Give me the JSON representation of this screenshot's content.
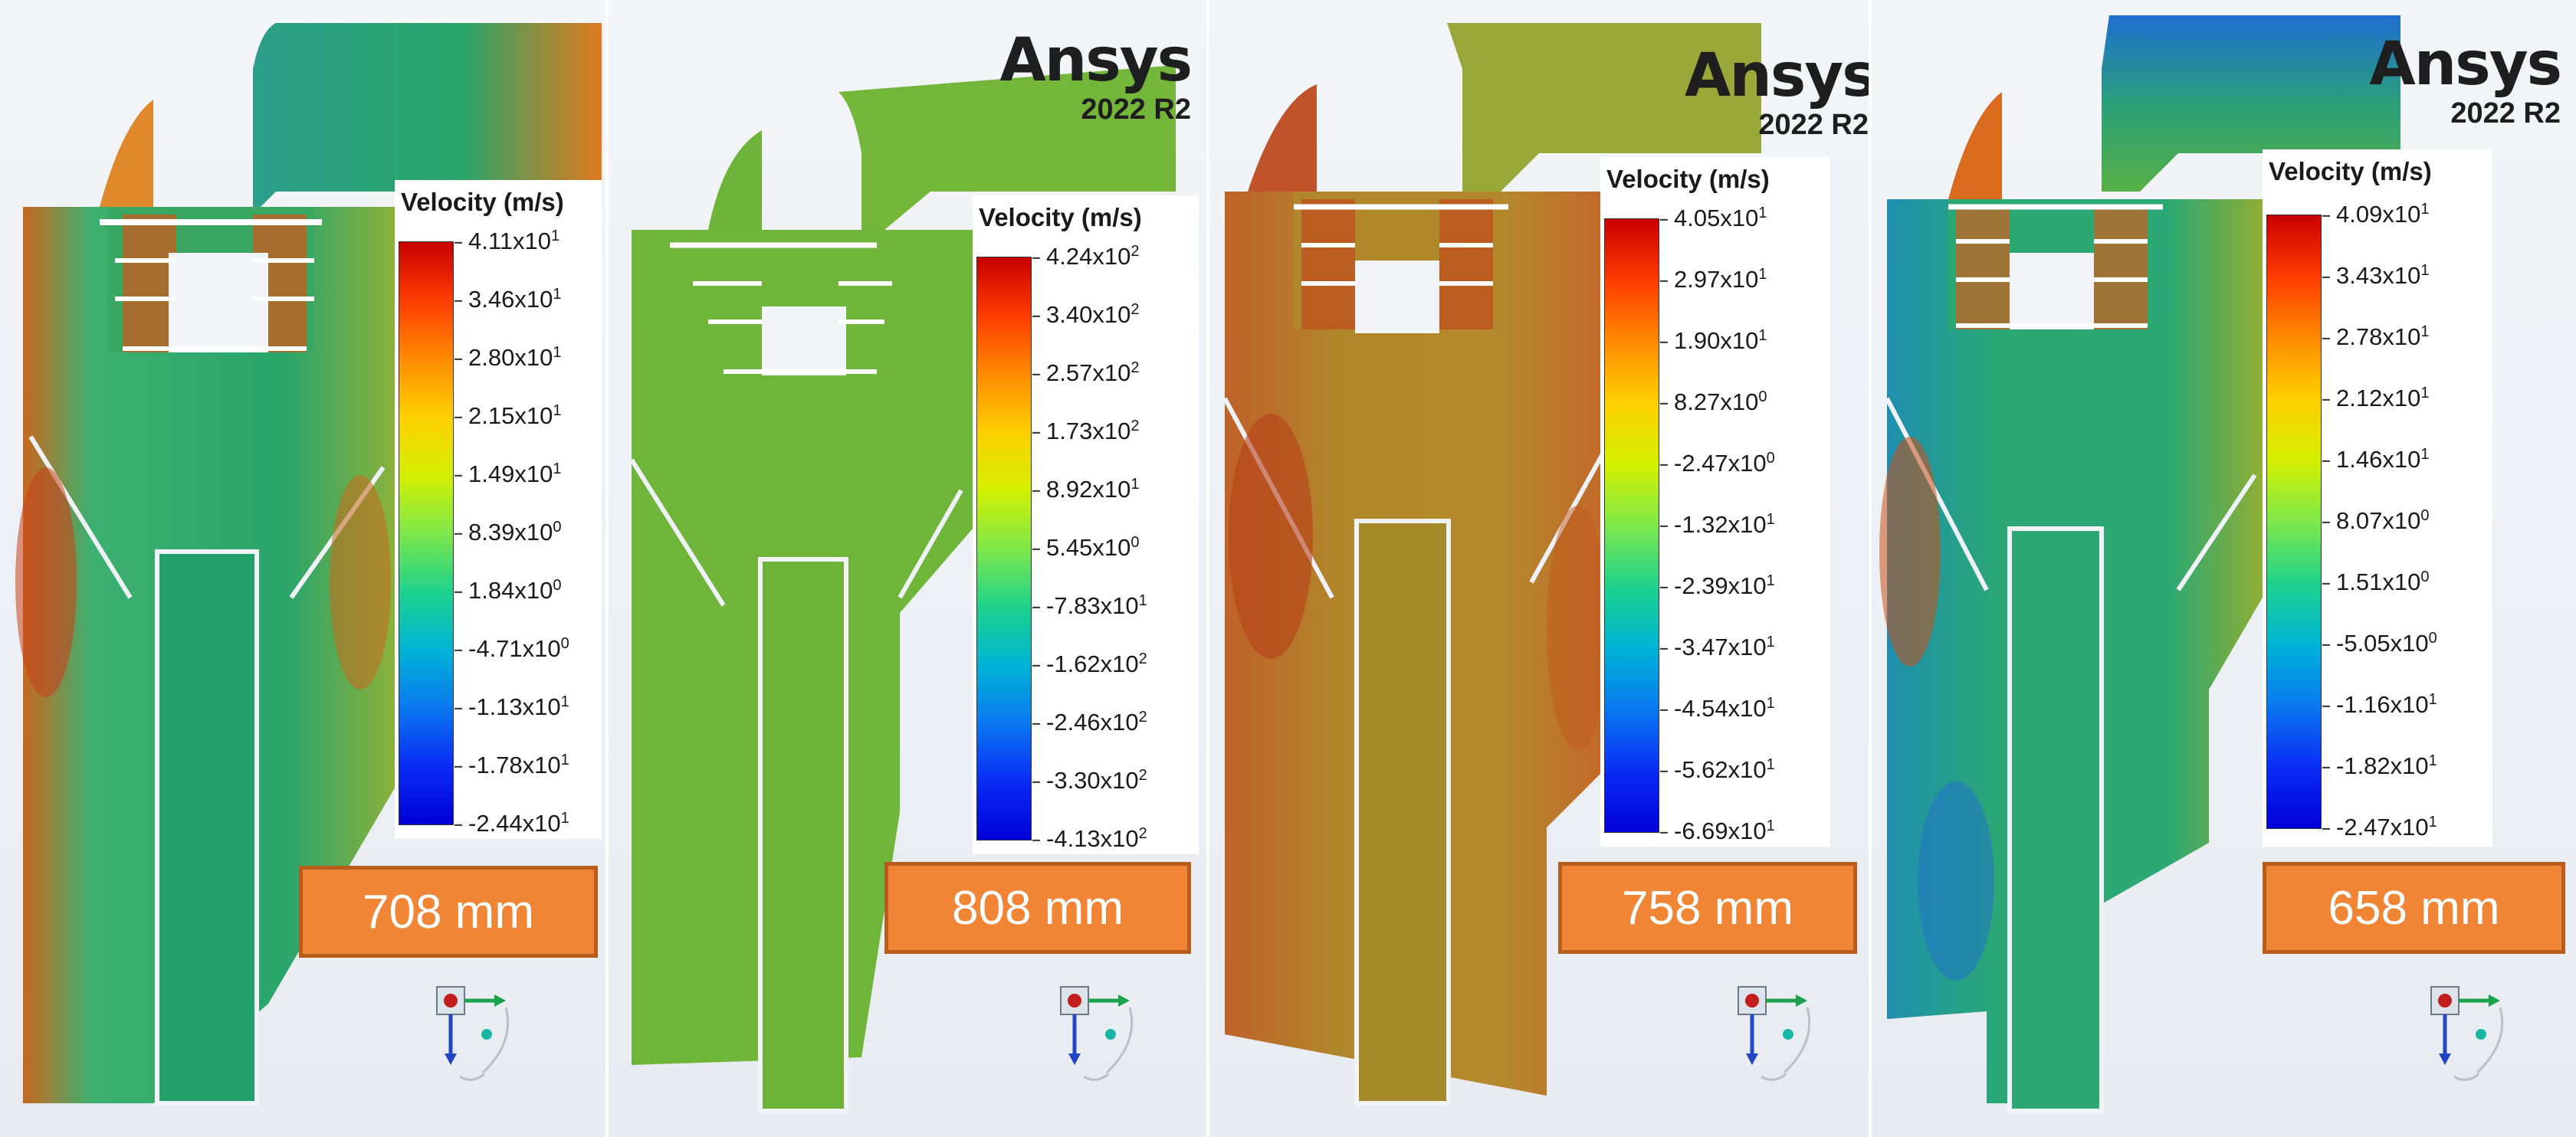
{
  "branding": {
    "name": "Ansys",
    "version": "2022 R2"
  },
  "legend_title": "Velocity (m/s)",
  "panels": [
    {
      "id": "708",
      "dimension": "708 mm",
      "show_logo": false,
      "tick_labels": [
        [
          "4.11x10",
          "1"
        ],
        [
          "3.46x10",
          "1"
        ],
        [
          "2.80x10",
          "1"
        ],
        [
          "2.15x10",
          "1"
        ],
        [
          "1.49x10",
          "1"
        ],
        [
          "8.39x10",
          "0"
        ],
        [
          "1.84x10",
          "0"
        ],
        [
          "-4.71x10",
          "0"
        ],
        [
          "-1.13x10",
          "1"
        ],
        [
          "-1.78x10",
          "1"
        ],
        [
          "-2.44x10",
          "1"
        ]
      ]
    },
    {
      "id": "808",
      "dimension": "808 mm",
      "show_logo": true,
      "tick_labels": [
        [
          "4.24x10",
          "2"
        ],
        [
          "3.40x10",
          "2"
        ],
        [
          "2.57x10",
          "2"
        ],
        [
          "1.73x10",
          "2"
        ],
        [
          "8.92x10",
          "1"
        ],
        [
          "5.45x10",
          "0"
        ],
        [
          "-7.83x10",
          "1"
        ],
        [
          "-1.62x10",
          "2"
        ],
        [
          "-2.46x10",
          "2"
        ],
        [
          "-3.30x10",
          "2"
        ],
        [
          "-4.13x10",
          "2"
        ]
      ]
    },
    {
      "id": "758",
      "dimension": "758 mm",
      "show_logo": true,
      "tick_labels": [
        [
          "4.05x10",
          "1"
        ],
        [
          "2.97x10",
          "1"
        ],
        [
          "1.90x10",
          "1"
        ],
        [
          "8.27x10",
          "0"
        ],
        [
          "-2.47x10",
          "0"
        ],
        [
          "-1.32x10",
          "1"
        ],
        [
          "-2.39x10",
          "1"
        ],
        [
          "-3.47x10",
          "1"
        ],
        [
          "-4.54x10",
          "1"
        ],
        [
          "-5.62x10",
          "1"
        ],
        [
          "-6.69x10",
          "1"
        ]
      ]
    },
    {
      "id": "658",
      "dimension": "658 mm",
      "show_logo": true,
      "tick_labels": [
        [
          "4.09x10",
          "1"
        ],
        [
          "3.43x10",
          "1"
        ],
        [
          "2.78x10",
          "1"
        ],
        [
          "2.12x10",
          "1"
        ],
        [
          "1.46x10",
          "1"
        ],
        [
          "8.07x10",
          "0"
        ],
        [
          "1.51x10",
          "0"
        ],
        [
          "-5.05x10",
          "0"
        ],
        [
          "-1.16x10",
          "1"
        ],
        [
          "-1.82x10",
          "1"
        ],
        [
          "-2.47x10",
          "1"
        ]
      ]
    }
  ],
  "colors": {
    "panel_708_fill": "#2aa66a",
    "panel_808_fill": "#6fb53a",
    "panel_758_fill": "#b0872a",
    "panel_658_fill": "#2ba873",
    "hot_spot": "#c8401a",
    "label_bg": "#ef8535",
    "label_border": "#b85d1d"
  },
  "icons": [
    "coordinate-triad-icon"
  ]
}
